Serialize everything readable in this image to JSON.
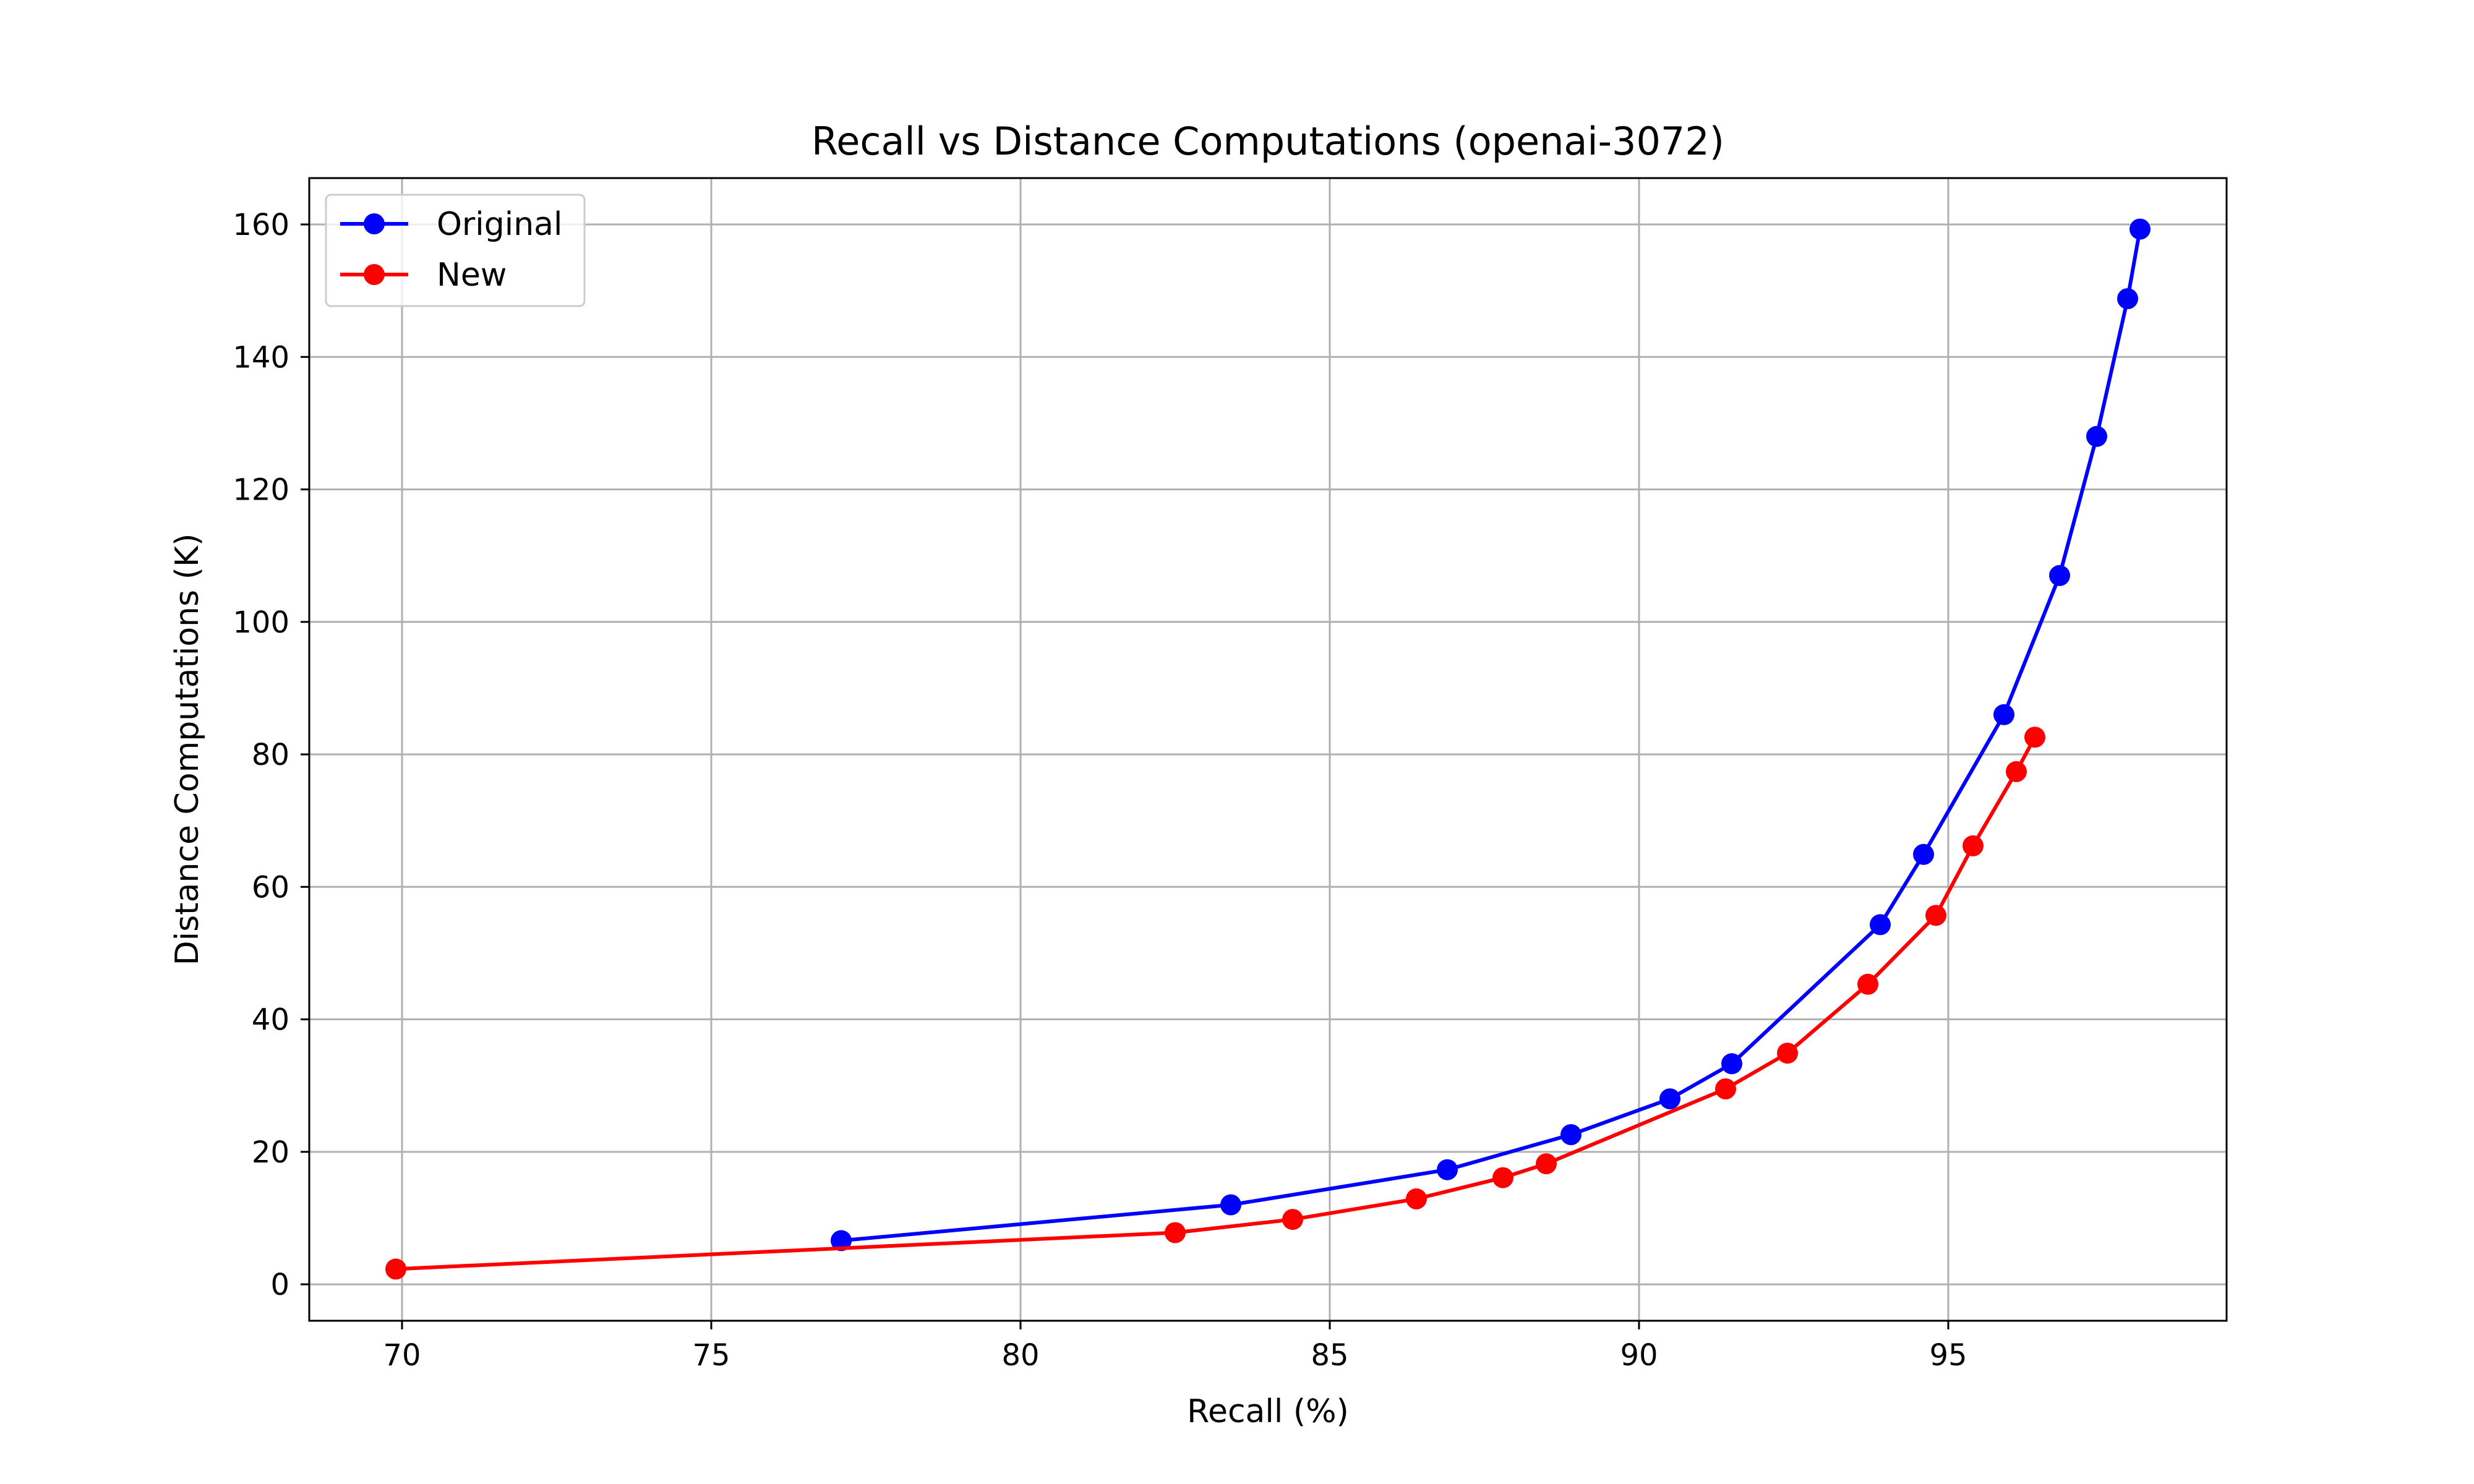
{
  "chart_data": {
    "type": "line",
    "title": "Recall vs Distance Computations (openai-3072)",
    "xlabel": "Recall (%)",
    "ylabel": "Distance Computations (K)",
    "xlim": [
      68.5,
      99.5
    ],
    "ylim": [
      -5.5,
      167
    ],
    "xticks": [
      70,
      75,
      80,
      85,
      90,
      95
    ],
    "yticks": [
      0,
      20,
      40,
      60,
      80,
      100,
      120,
      140,
      160
    ],
    "grid": true,
    "legend_position": "upper-left",
    "series": [
      {
        "name": "Original",
        "color": "#0000ff",
        "marker": "circle",
        "x": [
          77.1,
          83.4,
          86.9,
          88.9,
          90.5,
          91.5,
          93.9,
          94.6,
          95.9,
          96.8,
          97.4,
          97.9,
          98.1
        ],
        "y": [
          6.6,
          12.0,
          17.3,
          22.6,
          28.0,
          33.3,
          54.3,
          64.9,
          86.0,
          107.0,
          128.0,
          148.8,
          159.3
        ]
      },
      {
        "name": "New",
        "color": "#ff0000",
        "marker": "circle",
        "x": [
          69.9,
          82.5,
          84.4,
          86.4,
          87.8,
          88.5,
          91.4,
          92.4,
          93.7,
          94.8,
          95.4,
          96.1,
          96.4
        ],
        "y": [
          2.3,
          7.8,
          9.8,
          12.9,
          16.1,
          18.2,
          29.5,
          34.9,
          45.3,
          55.7,
          66.2,
          77.4,
          82.6
        ]
      }
    ]
  }
}
